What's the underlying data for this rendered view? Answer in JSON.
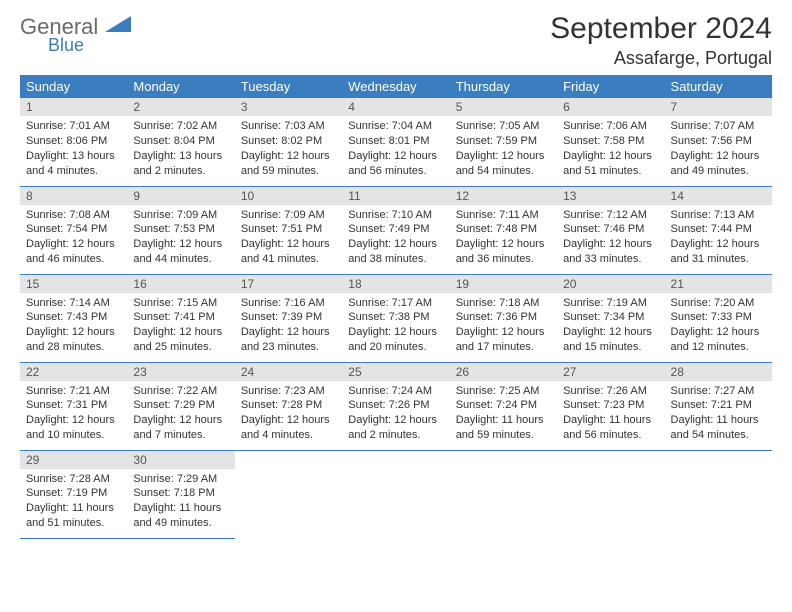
{
  "logo": {
    "word1": "General",
    "word2": "Blue"
  },
  "title": "September 2024",
  "location": "Assafarge, Portugal",
  "colors": {
    "header_bg": "#3a7ebf",
    "header_fg": "#ffffff",
    "daynum_bg": "#e4e4e4",
    "daynum_fg": "#555555",
    "row_divider": "#3a7ebf",
    "text": "#333333",
    "logo_gray": "#6b6b6b",
    "logo_blue": "#3a7ebf",
    "page_bg": "#ffffff"
  },
  "weekday_labels": [
    "Sunday",
    "Monday",
    "Tuesday",
    "Wednesday",
    "Thursday",
    "Friday",
    "Saturday"
  ],
  "weeks": [
    [
      {
        "n": "1",
        "sunrise": "Sunrise: 7:01 AM",
        "sunset": "Sunset: 8:06 PM",
        "daylight": "Daylight: 13 hours and 4 minutes."
      },
      {
        "n": "2",
        "sunrise": "Sunrise: 7:02 AM",
        "sunset": "Sunset: 8:04 PM",
        "daylight": "Daylight: 13 hours and 2 minutes."
      },
      {
        "n": "3",
        "sunrise": "Sunrise: 7:03 AM",
        "sunset": "Sunset: 8:02 PM",
        "daylight": "Daylight: 12 hours and 59 minutes."
      },
      {
        "n": "4",
        "sunrise": "Sunrise: 7:04 AM",
        "sunset": "Sunset: 8:01 PM",
        "daylight": "Daylight: 12 hours and 56 minutes."
      },
      {
        "n": "5",
        "sunrise": "Sunrise: 7:05 AM",
        "sunset": "Sunset: 7:59 PM",
        "daylight": "Daylight: 12 hours and 54 minutes."
      },
      {
        "n": "6",
        "sunrise": "Sunrise: 7:06 AM",
        "sunset": "Sunset: 7:58 PM",
        "daylight": "Daylight: 12 hours and 51 minutes."
      },
      {
        "n": "7",
        "sunrise": "Sunrise: 7:07 AM",
        "sunset": "Sunset: 7:56 PM",
        "daylight": "Daylight: 12 hours and 49 minutes."
      }
    ],
    [
      {
        "n": "8",
        "sunrise": "Sunrise: 7:08 AM",
        "sunset": "Sunset: 7:54 PM",
        "daylight": "Daylight: 12 hours and 46 minutes."
      },
      {
        "n": "9",
        "sunrise": "Sunrise: 7:09 AM",
        "sunset": "Sunset: 7:53 PM",
        "daylight": "Daylight: 12 hours and 44 minutes."
      },
      {
        "n": "10",
        "sunrise": "Sunrise: 7:09 AM",
        "sunset": "Sunset: 7:51 PM",
        "daylight": "Daylight: 12 hours and 41 minutes."
      },
      {
        "n": "11",
        "sunrise": "Sunrise: 7:10 AM",
        "sunset": "Sunset: 7:49 PM",
        "daylight": "Daylight: 12 hours and 38 minutes."
      },
      {
        "n": "12",
        "sunrise": "Sunrise: 7:11 AM",
        "sunset": "Sunset: 7:48 PM",
        "daylight": "Daylight: 12 hours and 36 minutes."
      },
      {
        "n": "13",
        "sunrise": "Sunrise: 7:12 AM",
        "sunset": "Sunset: 7:46 PM",
        "daylight": "Daylight: 12 hours and 33 minutes."
      },
      {
        "n": "14",
        "sunrise": "Sunrise: 7:13 AM",
        "sunset": "Sunset: 7:44 PM",
        "daylight": "Daylight: 12 hours and 31 minutes."
      }
    ],
    [
      {
        "n": "15",
        "sunrise": "Sunrise: 7:14 AM",
        "sunset": "Sunset: 7:43 PM",
        "daylight": "Daylight: 12 hours and 28 minutes."
      },
      {
        "n": "16",
        "sunrise": "Sunrise: 7:15 AM",
        "sunset": "Sunset: 7:41 PM",
        "daylight": "Daylight: 12 hours and 25 minutes."
      },
      {
        "n": "17",
        "sunrise": "Sunrise: 7:16 AM",
        "sunset": "Sunset: 7:39 PM",
        "daylight": "Daylight: 12 hours and 23 minutes."
      },
      {
        "n": "18",
        "sunrise": "Sunrise: 7:17 AM",
        "sunset": "Sunset: 7:38 PM",
        "daylight": "Daylight: 12 hours and 20 minutes."
      },
      {
        "n": "19",
        "sunrise": "Sunrise: 7:18 AM",
        "sunset": "Sunset: 7:36 PM",
        "daylight": "Daylight: 12 hours and 17 minutes."
      },
      {
        "n": "20",
        "sunrise": "Sunrise: 7:19 AM",
        "sunset": "Sunset: 7:34 PM",
        "daylight": "Daylight: 12 hours and 15 minutes."
      },
      {
        "n": "21",
        "sunrise": "Sunrise: 7:20 AM",
        "sunset": "Sunset: 7:33 PM",
        "daylight": "Daylight: 12 hours and 12 minutes."
      }
    ],
    [
      {
        "n": "22",
        "sunrise": "Sunrise: 7:21 AM",
        "sunset": "Sunset: 7:31 PM",
        "daylight": "Daylight: 12 hours and 10 minutes."
      },
      {
        "n": "23",
        "sunrise": "Sunrise: 7:22 AM",
        "sunset": "Sunset: 7:29 PM",
        "daylight": "Daylight: 12 hours and 7 minutes."
      },
      {
        "n": "24",
        "sunrise": "Sunrise: 7:23 AM",
        "sunset": "Sunset: 7:28 PM",
        "daylight": "Daylight: 12 hours and 4 minutes."
      },
      {
        "n": "25",
        "sunrise": "Sunrise: 7:24 AM",
        "sunset": "Sunset: 7:26 PM",
        "daylight": "Daylight: 12 hours and 2 minutes."
      },
      {
        "n": "26",
        "sunrise": "Sunrise: 7:25 AM",
        "sunset": "Sunset: 7:24 PM",
        "daylight": "Daylight: 11 hours and 59 minutes."
      },
      {
        "n": "27",
        "sunrise": "Sunrise: 7:26 AM",
        "sunset": "Sunset: 7:23 PM",
        "daylight": "Daylight: 11 hours and 56 minutes."
      },
      {
        "n": "28",
        "sunrise": "Sunrise: 7:27 AM",
        "sunset": "Sunset: 7:21 PM",
        "daylight": "Daylight: 11 hours and 54 minutes."
      }
    ],
    [
      {
        "n": "29",
        "sunrise": "Sunrise: 7:28 AM",
        "sunset": "Sunset: 7:19 PM",
        "daylight": "Daylight: 11 hours and 51 minutes."
      },
      {
        "n": "30",
        "sunrise": "Sunrise: 7:29 AM",
        "sunset": "Sunset: 7:18 PM",
        "daylight": "Daylight: 11 hours and 49 minutes."
      },
      null,
      null,
      null,
      null,
      null
    ]
  ]
}
